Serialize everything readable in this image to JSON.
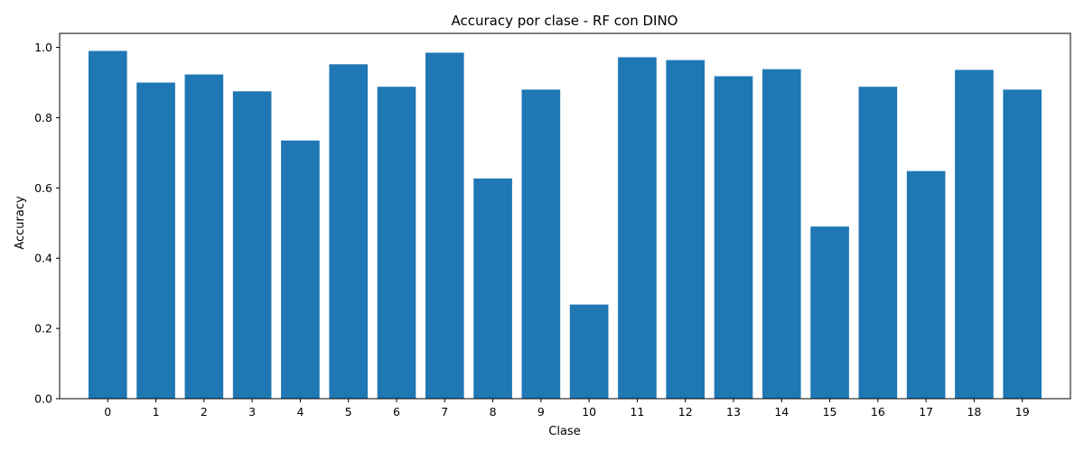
{
  "chart_data": {
    "type": "bar",
    "title": "Accuracy por clase - RF con DINO",
    "xlabel": "Clase",
    "ylabel": "Accuracy",
    "categories": [
      "0",
      "1",
      "2",
      "3",
      "4",
      "5",
      "6",
      "7",
      "8",
      "9",
      "10",
      "11",
      "12",
      "13",
      "14",
      "15",
      "16",
      "17",
      "18",
      "19"
    ],
    "values": [
      0.99,
      0.9,
      0.923,
      0.875,
      0.735,
      0.952,
      0.888,
      0.985,
      0.627,
      0.88,
      0.268,
      0.972,
      0.964,
      0.918,
      0.938,
      0.49,
      0.888,
      0.648,
      0.936,
      0.88
    ],
    "ylim": [
      0,
      1.04
    ],
    "yticks": [
      "0.0",
      "0.2",
      "0.4",
      "0.6",
      "0.8",
      "1.0"
    ],
    "grid": false,
    "bar_color": "#1f77b4"
  }
}
